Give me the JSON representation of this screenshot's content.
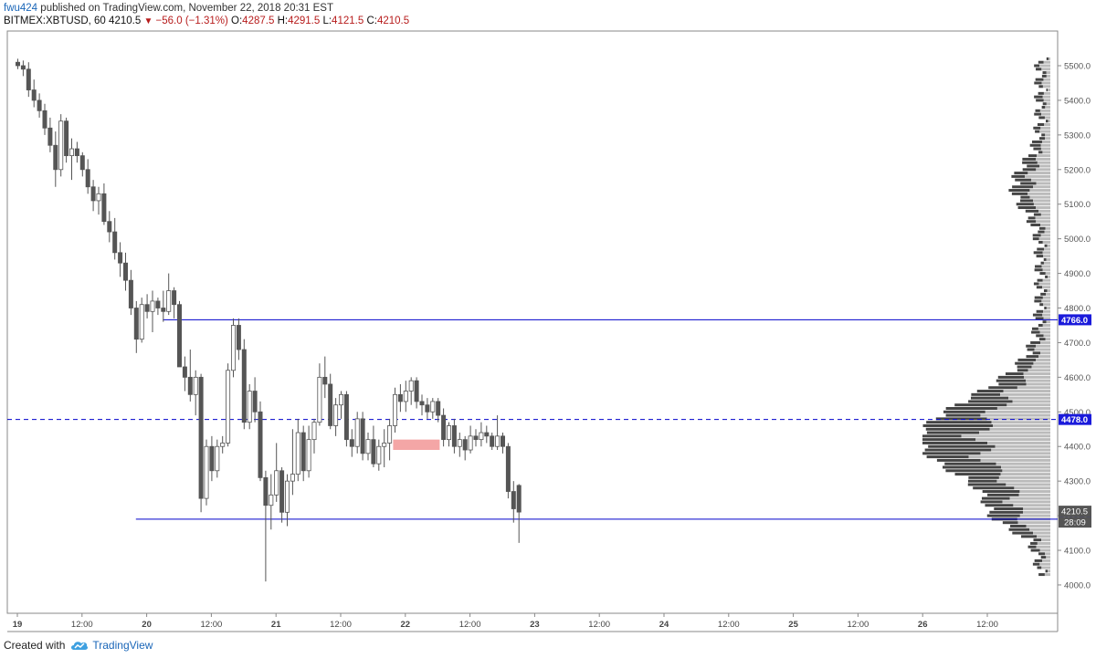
{
  "header": {
    "user": "fwu424",
    "published_text": "published on TradingView.com, November 22, 2018 20:31 EST",
    "symbol": "BITMEX:XBTUSD, 60",
    "last": "4210.5",
    "change_arrow": "▼",
    "change": "−56.0 (−1.31%)",
    "o_label": "O:",
    "o_value": "4287.5",
    "h_label": "H:",
    "h_value": "4291.5",
    "l_label": "L:",
    "l_value": "4121.5",
    "c_label": "C:",
    "c_value": "4210.5"
  },
  "footer": {
    "created_with": "Created with",
    "brand": "TradingView",
    "logo_icon": "tradingview-cloud-logo-icon"
  },
  "colors": {
    "up_body": "#ffffff",
    "down_body": "#555555",
    "wick": "#555555",
    "level_line": "#0000cc",
    "zone": "#f4a6a6",
    "volume_profile_dark": "#444444",
    "volume_profile_light": "#bbbbbb",
    "price_label_bg": "#1a1adb",
    "last_label_bg": "#555555"
  },
  "chart_data": {
    "type": "candlestick",
    "y_axis": {
      "ticks": [
        "5500.0",
        "5400.0",
        "5300.0",
        "5200.0",
        "5100.0",
        "5000.0",
        "4900.0",
        "4800.0",
        "4700.0",
        "4600.0",
        "4500.0",
        "4400.0",
        "4300.0",
        "4200.0",
        "4100.0",
        "4000.0"
      ],
      "range": [
        3930,
        5560
      ],
      "position": "right"
    },
    "x_axis": {
      "labels": [
        {
          "text": "19",
          "bold": true,
          "hour": 0
        },
        {
          "text": "12:00",
          "bold": false,
          "hour": 12
        },
        {
          "text": "20",
          "bold": true,
          "hour": 24
        },
        {
          "text": "12:00",
          "bold": false,
          "hour": 36
        },
        {
          "text": "21",
          "bold": true,
          "hour": 48
        },
        {
          "text": "12:00",
          "bold": false,
          "hour": 60
        },
        {
          "text": "22",
          "bold": true,
          "hour": 72
        },
        {
          "text": "12:00",
          "bold": false,
          "hour": 84
        },
        {
          "text": "23",
          "bold": true,
          "hour": 96
        },
        {
          "text": "12:00",
          "bold": false,
          "hour": 108
        },
        {
          "text": "24",
          "bold": true,
          "hour": 120
        },
        {
          "text": "12:00",
          "bold": false,
          "hour": 132
        },
        {
          "text": "25",
          "bold": true,
          "hour": 144
        },
        {
          "text": "12:00",
          "bold": false,
          "hour": 156
        },
        {
          "text": "26",
          "bold": true,
          "hour": 168
        },
        {
          "text": "12:00",
          "bold": false,
          "hour": 180
        }
      ]
    },
    "candles": [
      [
        5510,
        5520,
        5490,
        5500
      ],
      [
        5500,
        5515,
        5470,
        5490
      ],
      [
        5490,
        5510,
        5410,
        5430
      ],
      [
        5430,
        5460,
        5380,
        5400
      ],
      [
        5400,
        5420,
        5350,
        5370
      ],
      [
        5370,
        5390,
        5300,
        5320
      ],
      [
        5320,
        5350,
        5250,
        5270
      ],
      [
        5270,
        5310,
        5150,
        5200
      ],
      [
        5200,
        5360,
        5180,
        5340
      ],
      [
        5340,
        5350,
        5220,
        5240
      ],
      [
        5240,
        5290,
        5170,
        5260
      ],
      [
        5260,
        5280,
        5220,
        5240
      ],
      [
        5240,
        5250,
        5180,
        5200
      ],
      [
        5200,
        5230,
        5130,
        5150
      ],
      [
        5150,
        5170,
        5080,
        5110
      ],
      [
        5110,
        5150,
        5070,
        5130
      ],
      [
        5130,
        5160,
        5040,
        5050
      ],
      [
        5050,
        5080,
        4990,
        5020
      ],
      [
        5020,
        5060,
        4940,
        4960
      ],
      [
        4960,
        4990,
        4890,
        4930
      ],
      [
        4930,
        4960,
        4850,
        4880
      ],
      [
        4880,
        4910,
        4780,
        4800
      ],
      [
        4800,
        4820,
        4670,
        4710
      ],
      [
        4710,
        4830,
        4700,
        4810
      ],
      [
        4810,
        4840,
        4770,
        4790
      ],
      [
        4790,
        4850,
        4730,
        4820
      ],
      [
        4820,
        4830,
        4780,
        4800
      ],
      [
        4800,
        4850,
        4760,
        4790
      ],
      [
        4790,
        4900,
        4780,
        4850
      ],
      [
        4850,
        4860,
        4770,
        4810
      ],
      [
        4810,
        4820,
        4640,
        4630
      ],
      [
        4630,
        4660,
        4560,
        4600
      ],
      [
        4600,
        4680,
        4530,
        4550
      ],
      [
        4550,
        4620,
        4490,
        4600
      ],
      [
        4600,
        4610,
        4210,
        4250
      ],
      [
        4250,
        4420,
        4230,
        4400
      ],
      [
        4400,
        4430,
        4300,
        4330
      ],
      [
        4330,
        4420,
        4310,
        4400
      ],
      [
        4400,
        4430,
        4380,
        4410
      ],
      [
        4410,
        4640,
        4400,
        4620
      ],
      [
        4620,
        4770,
        4600,
        4750
      ],
      [
        4750,
        4770,
        4650,
        4680
      ],
      [
        4680,
        4710,
        4450,
        4470
      ],
      [
        4470,
        4580,
        4450,
        4560
      ],
      [
        4560,
        4600,
        4470,
        4500
      ],
      [
        4500,
        4530,
        4300,
        4310
      ],
      [
        4310,
        4330,
        4010,
        4230
      ],
      [
        4230,
        4320,
        4160,
        4260
      ],
      [
        4260,
        4410,
        4240,
        4330
      ],
      [
        4330,
        4340,
        4180,
        4210
      ],
      [
        4210,
        4320,
        4170,
        4300
      ],
      [
        4300,
        4450,
        4260,
        4320
      ],
      [
        4320,
        4480,
        4300,
        4440
      ],
      [
        4440,
        4460,
        4300,
        4330
      ],
      [
        4330,
        4460,
        4310,
        4420
      ],
      [
        4420,
        4480,
        4380,
        4470
      ],
      [
        4470,
        4640,
        4460,
        4600
      ],
      [
        4600,
        4660,
        4540,
        4580
      ],
      [
        4580,
        4610,
        4450,
        4460
      ],
      [
        4460,
        4540,
        4430,
        4520
      ],
      [
        4520,
        4560,
        4480,
        4550
      ],
      [
        4550,
        4560,
        4400,
        4420
      ],
      [
        4420,
        4450,
        4370,
        4400
      ],
      [
        4400,
        4500,
        4380,
        4480
      ],
      [
        4480,
        4500,
        4360,
        4380
      ],
      [
        4380,
        4440,
        4360,
        4420
      ],
      [
        4420,
        4460,
        4340,
        4350
      ],
      [
        4350,
        4420,
        4330,
        4400
      ],
      [
        4400,
        4450,
        4340,
        4410
      ],
      [
        4410,
        4480,
        4360,
        4460
      ],
      [
        4460,
        4570,
        4440,
        4550
      ],
      [
        4550,
        4580,
        4500,
        4530
      ],
      [
        4530,
        4590,
        4500,
        4560
      ],
      [
        4560,
        4600,
        4520,
        4590
      ],
      [
        4590,
        4600,
        4510,
        4530
      ],
      [
        4530,
        4550,
        4490,
        4520
      ],
      [
        4520,
        4540,
        4480,
        4500
      ],
      [
        4500,
        4540,
        4480,
        4530
      ],
      [
        4530,
        4540,
        4470,
        4490
      ],
      [
        4490,
        4510,
        4400,
        4420
      ],
      [
        4420,
        4470,
        4400,
        4460
      ],
      [
        4460,
        4480,
        4380,
        4400
      ],
      [
        4400,
        4440,
        4370,
        4420
      ],
      [
        4420,
        4430,
        4360,
        4390
      ],
      [
        4390,
        4460,
        4380,
        4430
      ],
      [
        4430,
        4450,
        4400,
        4420
      ],
      [
        4420,
        4470,
        4400,
        4440
      ],
      [
        4440,
        4460,
        4410,
        4430
      ],
      [
        4430,
        4440,
        4390,
        4400
      ],
      [
        4400,
        4490,
        4390,
        4430
      ],
      [
        4430,
        4440,
        4380,
        4400
      ],
      [
        4400,
        4410,
        4250,
        4270
      ],
      [
        4270,
        4300,
        4180,
        4220
      ],
      [
        4287.5,
        4291.5,
        4121.5,
        4210.5
      ]
    ],
    "levels": [
      {
        "price": 4766.0,
        "label": "4766.0",
        "style": "solid",
        "start_hour": 27
      },
      {
        "price": 4478.0,
        "label": "4478.0",
        "style": "dashed",
        "start_hour": 0
      },
      {
        "price": 4190.0,
        "label": "4190.0",
        "style": "solid",
        "start_hour": 22
      }
    ],
    "zone": {
      "price_low": 4390,
      "price_high": 4420,
      "start_hour": 66,
      "end_hour": 76
    },
    "last_price_label": "4210.5",
    "countdown_label": "28:09"
  }
}
